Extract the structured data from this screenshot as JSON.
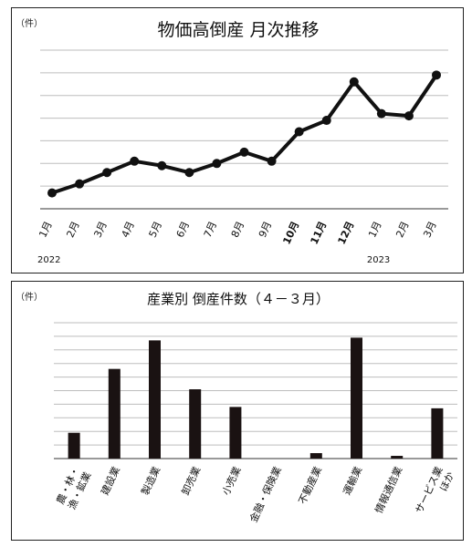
{
  "chart_data": [
    {
      "type": "line",
      "title": "物価高倒産 月次推移",
      "unit_label": "（件）",
      "x": [
        "1月",
        "2月",
        "3月",
        "4月",
        "5月",
        "6月",
        "7月",
        "8月",
        "9月",
        "10月",
        "11月",
        "12月",
        "1月",
        "2月",
        "3月"
      ],
      "bold_ticks": [
        9,
        10,
        11
      ],
      "year_labels": [
        {
          "label": "2022",
          "at_index": 0
        },
        {
          "label": "2023",
          "at_index": 12
        }
      ],
      "series": [
        {
          "values": [
            7,
            11,
            16,
            21,
            19,
            16,
            20,
            25,
            21,
            34,
            39,
            56,
            42,
            41,
            59
          ]
        }
      ],
      "ylim": [
        0,
        70
      ],
      "yticks": [
        10,
        20,
        30,
        40,
        50,
        60,
        70
      ],
      "grid": true,
      "colors": {
        "line": "#111111",
        "marker": "#111111",
        "grid": "#bdbdbd"
      }
    },
    {
      "type": "bar",
      "title": "産業別 倒産件数（４－３月）",
      "unit_label": "（件）",
      "categories": [
        "農・林・漁・鉱業",
        "建設業",
        "製造業",
        "卸売業",
        "小売業",
        "金融・保険業",
        "不動産業",
        "運輸業",
        "情報通信業",
        "サービス業ほか"
      ],
      "category_lines": [
        [
          "農・林・",
          "漁・鉱業"
        ],
        [
          "建設業"
        ],
        [
          "製造業"
        ],
        [
          "卸売業"
        ],
        [
          "小売業"
        ],
        [
          "金融・保険業"
        ],
        [
          "不動産業"
        ],
        [
          "運輸業"
        ],
        [
          "情報通信業"
        ],
        [
          "サービス業",
          "ほか"
        ]
      ],
      "values": [
        19,
        66,
        87,
        51,
        38,
        0,
        4,
        89,
        2,
        37
      ],
      "ylim": [
        0,
        100
      ],
      "yticks": [
        0,
        10,
        20,
        30,
        40,
        50,
        60,
        70,
        80,
        90,
        100
      ],
      "grid": true,
      "colors": {
        "bar": "#1a1212",
        "grid": "#c4c4c4"
      }
    }
  ]
}
